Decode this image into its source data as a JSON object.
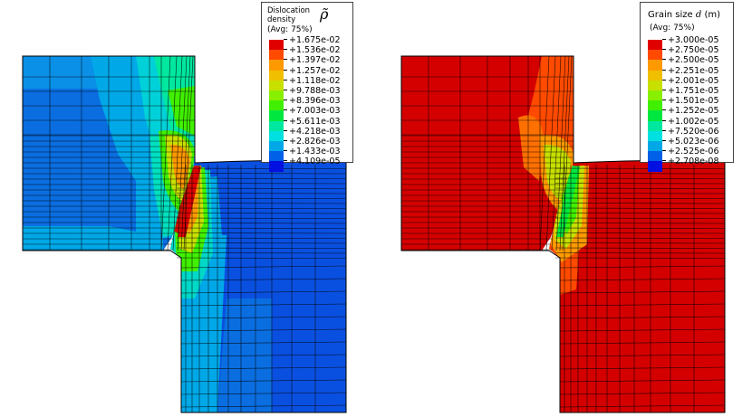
{
  "panels": [
    {
      "id": "dislocation",
      "legend": {
        "title_line1": "Dislocation",
        "title_line2": "density",
        "symbol": "ρ̃",
        "avg": "(Avg: 75%)",
        "colors": [
          "#e00000",
          "#ff4a00",
          "#ff9900",
          "#f0c000",
          "#c8e000",
          "#88ef00",
          "#40f000",
          "#00e840",
          "#00e8a0",
          "#00e0e0",
          "#00a8e8",
          "#0060e8",
          "#0010e0"
        ],
        "labels": [
          "+1.675e-02",
          "+1.536e-02",
          "+1.397e-02",
          "+1.257e-02",
          "+1.118e-02",
          "+9.788e-03",
          "+8.396e-03",
          "+7.003e-03",
          "+5.611e-03",
          "+4.218e-03",
          "+2.826e-03",
          "+1.433e-03",
          "+4.109e-05"
        ]
      }
    },
    {
      "id": "grain-size",
      "legend": {
        "title": "Grain size",
        "symbol": "d",
        "unit": "(m)",
        "avg": "(Avg: 75%)",
        "colors": [
          "#e00000",
          "#ff4a00",
          "#ff9900",
          "#f0c000",
          "#c8e000",
          "#88ef00",
          "#40f000",
          "#00e840",
          "#00e8a0",
          "#00e0e0",
          "#00a8e8",
          "#0060e8",
          "#0010e0"
        ],
        "labels": [
          "+3.000e-05",
          "+2.750e-05",
          "+2.500e-05",
          "+2.251e-05",
          "+2.001e-05",
          "+1.751e-05",
          "+1.501e-05",
          "+1.252e-05",
          "+1.002e-05",
          "+7.520e-06",
          "+5.023e-06",
          "+2.525e-06",
          "+2.708e-08"
        ]
      }
    }
  ]
}
